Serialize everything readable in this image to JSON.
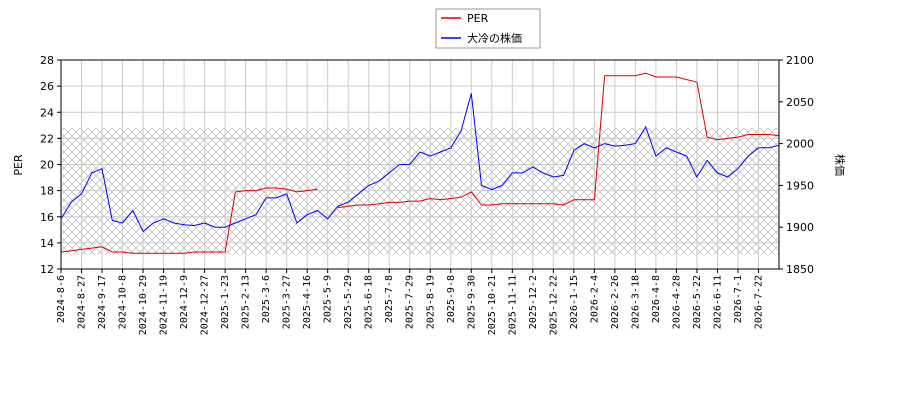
{
  "chart_data": {
    "type": "line",
    "categories": [
      "2024-8-6",
      null,
      "2024-8-27",
      null,
      "2024-9-17",
      null,
      "2024-10-8",
      null,
      "2024-10-29",
      null,
      "2024-11-19",
      null,
      "2024-12-9",
      null,
      "2024-12-27",
      null,
      "2025-1-23",
      null,
      "2025-2-13",
      null,
      "2025-3-6",
      null,
      "2025-3-27",
      null,
      "2025-4-16",
      null,
      "2025-5-9",
      null,
      "2025-5-29",
      null,
      "2025-6-18",
      null,
      "2025-7-8",
      null,
      "2025-7-29",
      null,
      "2025-8-19",
      null,
      "2025-9-8",
      null,
      "2025-9-30",
      null,
      "2025-10-21",
      null,
      "2025-11-11",
      null,
      "2025-12-2",
      null,
      "2025-12-22",
      null,
      "2026-1-15",
      null,
      "2026-2-4",
      null,
      "2026-2-26",
      null,
      "2026-3-18",
      null,
      "2026-4-8",
      null,
      "2026-4-28",
      null,
      "2026-5-22",
      null,
      "2026-6-11",
      null,
      "2026-7-1",
      null,
      "2026-7-22",
      null,
      null
    ],
    "series": [
      {
        "name": "PER",
        "color": "#dd0000",
        "axis": "y",
        "values": [
          13.3,
          13.4,
          13.5,
          13.6,
          13.7,
          13.3,
          13.3,
          13.2,
          13.2,
          13.2,
          13.2,
          13.2,
          13.2,
          13.3,
          13.3,
          13.3,
          13.3,
          17.9,
          18.0,
          18.0,
          18.2,
          18.2,
          18.1,
          17.9,
          18.0,
          18.1,
          null,
          16.7,
          16.8,
          16.9,
          16.9,
          17.0,
          17.1,
          17.1,
          17.2,
          17.2,
          17.4,
          17.3,
          17.4,
          17.5,
          17.9,
          16.9,
          16.9,
          17.0,
          17.0,
          17.0,
          17.0,
          17.0,
          17.0,
          16.9,
          17.3,
          17.3,
          17.3,
          26.8,
          26.8,
          26.8,
          26.8,
          27.0,
          26.7,
          26.7,
          26.7,
          26.5,
          26.3,
          22.1,
          21.9,
          22.0,
          22.1,
          22.3,
          22.3,
          22.3,
          22.2
        ]
      },
      {
        "name": "大冷の株価",
        "color": "#0000ff",
        "axis": "y2",
        "values": [
          1910,
          1930,
          1940,
          1965,
          1970,
          1908,
          1905,
          1920,
          1895,
          1905,
          1910,
          1905,
          1903,
          1902,
          1905,
          1900,
          1900,
          1905,
          1910,
          1915,
          1935,
          1935,
          1940,
          1905,
          1915,
          1920,
          1910,
          1925,
          1930,
          1940,
          1950,
          1955,
          1965,
          1975,
          1975,
          1990,
          1985,
          1990,
          1995,
          2015,
          2060,
          1950,
          1945,
          1950,
          1965,
          1965,
          1972,
          1965,
          1960,
          1962,
          1992,
          2000,
          1995,
          2000,
          1997,
          1998,
          2000,
          2020,
          1985,
          1995,
          1990,
          1985,
          1960,
          1980,
          1965,
          1960,
          1970,
          1985,
          1995,
          1995,
          1998
        ]
      }
    ],
    "band": [
      13.1,
      22.8
    ],
    "ylabel": "PER",
    "y2label": "株価",
    "ylim": [
      12,
      28
    ],
    "yticks": [
      12,
      14,
      16,
      18,
      20,
      22,
      24,
      26,
      28
    ],
    "y2lim": [
      1850,
      2100
    ],
    "y2ticks": [
      1850,
      1900,
      1950,
      2000,
      2050,
      2100
    ],
    "grid": true
  }
}
